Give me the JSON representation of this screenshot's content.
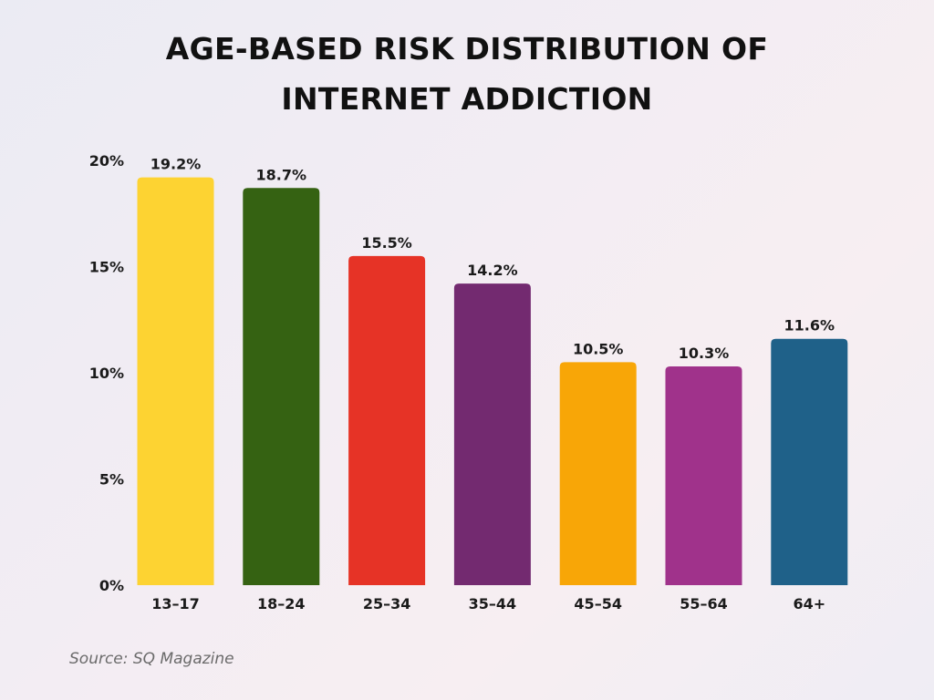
{
  "title_lines": [
    "AGE-BASED RISK DISTRIBUTION OF",
    "INTERNET ADDICTION"
  ],
  "source": "Source: SQ Magazine",
  "chart_data": {
    "type": "bar",
    "categories": [
      "13–17",
      "18–24",
      "25–34",
      "35–44",
      "45–54",
      "55–64",
      "64+"
    ],
    "values": [
      19.2,
      18.7,
      15.5,
      14.2,
      10.5,
      10.3,
      11.6
    ],
    "value_labels": [
      "19.2%",
      "18.7%",
      "15.5%",
      "14.2%",
      "10.5%",
      "10.3%",
      "11.6%"
    ],
    "colors": [
      "#fdd332",
      "#356212",
      "#e63326",
      "#732a70",
      "#f8a607",
      "#a0328b",
      "#1f6189"
    ],
    "yticks": [
      0,
      5,
      10,
      15,
      20
    ],
    "ytick_labels": [
      "0%",
      "5%",
      "10%",
      "15%",
      "20%"
    ],
    "ylim": [
      0,
      20
    ],
    "grid": false,
    "legend": "none"
  }
}
